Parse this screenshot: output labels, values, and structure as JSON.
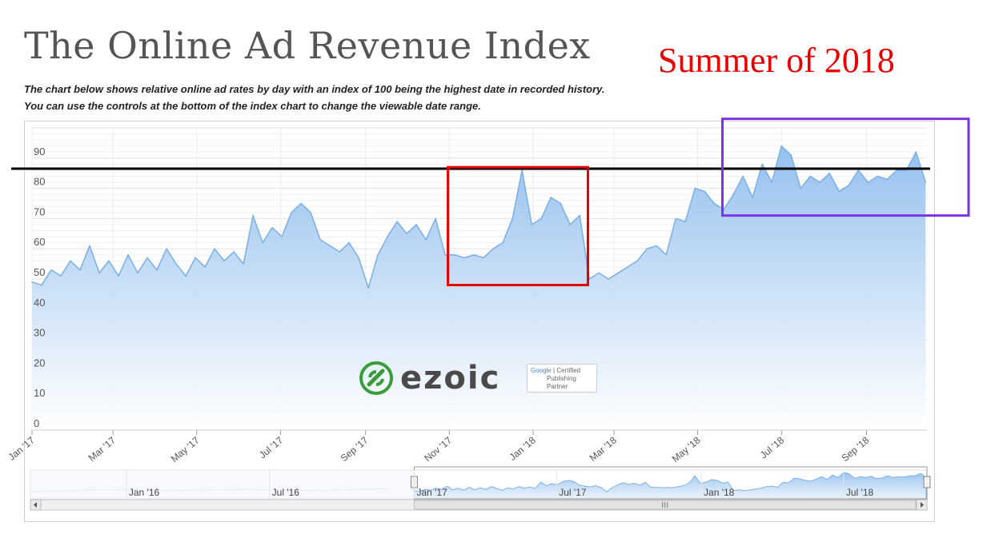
{
  "page": {
    "title": "The Online Ad Revenue Index",
    "subtitle_line1": "The chart below shows relative online ad rates by day with an index of 100 being the highest date in recorded history.",
    "subtitle_line2": "You can use the controls at the bottom of the index chart to change the viewable date range.",
    "annotation": "Summer of 2018"
  },
  "brand": {
    "logo_text": "ezoic",
    "partner_google": "Google",
    "partner_line1": "Certified",
    "partner_line2": "Publishing",
    "partner_line3": "Partner",
    "logo_green": "#3a9b3a"
  },
  "colors": {
    "line": "#7fb2e5",
    "area_top": "#8fbdee",
    "area_bottom": "#ffffff",
    "annotation_red": "#e60000",
    "box_red": "#e60000",
    "box_purple": "#7a33e6",
    "reference_line": "#000000"
  },
  "chart_data": {
    "type": "area",
    "title": "",
    "xlabel": "",
    "ylabel": "",
    "ylim": [
      0,
      100
    ],
    "y_ticks": [
      0,
      10,
      20,
      30,
      40,
      50,
      60,
      70,
      80,
      90
    ],
    "x_ticks": [
      "Jan '17",
      "Mar '17",
      "May '17",
      "Jul '17",
      "Sep '17",
      "Nov '17",
      "Jan '18",
      "Mar '18",
      "May '18",
      "Jul '18",
      "Sep '18"
    ],
    "grid": true,
    "legend": "none",
    "x_range": [
      "2017-01-01",
      "2018-10-15"
    ],
    "series": [
      {
        "values": [
          [
            "2017-01-01",
            49
          ],
          [
            "2017-01-08",
            48
          ],
          [
            "2017-01-15",
            53
          ],
          [
            "2017-01-22",
            51
          ],
          [
            "2017-01-29",
            56
          ],
          [
            "2017-02-05",
            53
          ],
          [
            "2017-02-12",
            61
          ],
          [
            "2017-02-19",
            52
          ],
          [
            "2017-02-26",
            56
          ],
          [
            "2017-03-05",
            51
          ],
          [
            "2017-03-12",
            58
          ],
          [
            "2017-03-19",
            52
          ],
          [
            "2017-03-26",
            57
          ],
          [
            "2017-04-02",
            53
          ],
          [
            "2017-04-09",
            60
          ],
          [
            "2017-04-16",
            55
          ],
          [
            "2017-04-23",
            51
          ],
          [
            "2017-04-30",
            57
          ],
          [
            "2017-05-07",
            54
          ],
          [
            "2017-05-14",
            60
          ],
          [
            "2017-05-21",
            56
          ],
          [
            "2017-05-28",
            59
          ],
          [
            "2017-06-04",
            55
          ],
          [
            "2017-06-11",
            71
          ],
          [
            "2017-06-18",
            62
          ],
          [
            "2017-06-25",
            67
          ],
          [
            "2017-07-02",
            64
          ],
          [
            "2017-07-09",
            72
          ],
          [
            "2017-07-16",
            75
          ],
          [
            "2017-07-23",
            72
          ],
          [
            "2017-07-30",
            63
          ],
          [
            "2017-08-06",
            61
          ],
          [
            "2017-08-13",
            59
          ],
          [
            "2017-08-20",
            62
          ],
          [
            "2017-08-27",
            57
          ],
          [
            "2017-09-03",
            47
          ],
          [
            "2017-09-10",
            58
          ],
          [
            "2017-09-17",
            64
          ],
          [
            "2017-09-24",
            69
          ],
          [
            "2017-10-01",
            65
          ],
          [
            "2017-10-08",
            68
          ],
          [
            "2017-10-15",
            63
          ],
          [
            "2017-10-22",
            70
          ],
          [
            "2017-10-29",
            58
          ],
          [
            "2017-11-05",
            58
          ],
          [
            "2017-11-12",
            57
          ],
          [
            "2017-11-19",
            58
          ],
          [
            "2017-11-26",
            57
          ],
          [
            "2017-12-03",
            60
          ],
          [
            "2017-12-10",
            62
          ],
          [
            "2017-12-17",
            70
          ],
          [
            "2017-12-24",
            86
          ],
          [
            "2017-12-31",
            68
          ],
          [
            "2018-01-07",
            70
          ],
          [
            "2018-01-14",
            77
          ],
          [
            "2018-01-21",
            75
          ],
          [
            "2018-01-28",
            68
          ],
          [
            "2018-02-04",
            71
          ],
          [
            "2018-02-11",
            50
          ],
          [
            "2018-02-18",
            52
          ],
          [
            "2018-02-25",
            50
          ],
          [
            "2018-03-04",
            52
          ],
          [
            "2018-03-11",
            54
          ],
          [
            "2018-03-18",
            56
          ],
          [
            "2018-03-25",
            60
          ],
          [
            "2018-04-01",
            61
          ],
          [
            "2018-04-08",
            58
          ],
          [
            "2018-04-15",
            70
          ],
          [
            "2018-04-22",
            69
          ],
          [
            "2018-04-29",
            80
          ],
          [
            "2018-05-06",
            79
          ],
          [
            "2018-05-13",
            75
          ],
          [
            "2018-05-20",
            73
          ],
          [
            "2018-05-27",
            78
          ],
          [
            "2018-06-03",
            84
          ],
          [
            "2018-06-10",
            77
          ],
          [
            "2018-06-17",
            88
          ],
          [
            "2018-06-24",
            82
          ],
          [
            "2018-07-01",
            94
          ],
          [
            "2018-07-08",
            91
          ],
          [
            "2018-07-15",
            80
          ],
          [
            "2018-07-22",
            84
          ],
          [
            "2018-07-29",
            82
          ],
          [
            "2018-08-05",
            85
          ],
          [
            "2018-08-12",
            79
          ],
          [
            "2018-08-19",
            81
          ],
          [
            "2018-08-26",
            86
          ],
          [
            "2018-09-02",
            82
          ],
          [
            "2018-09-09",
            84
          ],
          [
            "2018-09-16",
            83
          ],
          [
            "2018-09-23",
            86
          ],
          [
            "2018-09-30",
            86
          ],
          [
            "2018-10-07",
            92
          ],
          [
            "2018-10-14",
            82
          ]
        ]
      }
    ],
    "annotations": [
      {
        "type": "horizontal_line",
        "y": 86.5,
        "color": "#000000"
      },
      {
        "type": "box",
        "color": "#e60000",
        "x": [
          "2017-10-31",
          "2018-02-10"
        ],
        "y": [
          48,
          87
        ]
      },
      {
        "type": "box",
        "color": "#7a33e6",
        "x": [
          "2018-05-19",
          "2018-10-15"
        ],
        "y": [
          71,
          103
        ]
      }
    ],
    "navigator": {
      "x_ticks": [
        "Jan '16",
        "Jul '16",
        "Jan '17",
        "Jul '17",
        "Jan '18",
        "Jul '18"
      ],
      "range_start": "2015-09-01",
      "range_end": "2018-10-15",
      "selection": [
        "2017-01-01",
        "2018-10-15"
      ]
    }
  }
}
